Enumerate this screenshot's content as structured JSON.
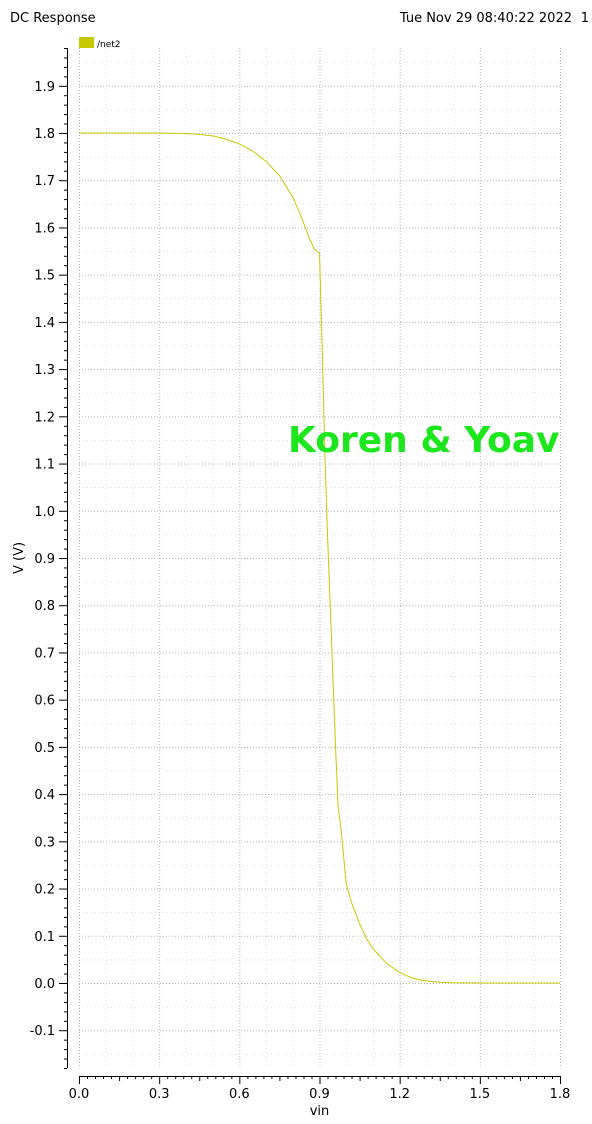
{
  "header": {
    "title": "DC Response",
    "timestamp": "Tue Nov 29 08:40:22 2022",
    "page_number": "1"
  },
  "annotation": {
    "text": "Koren & Yoav",
    "color": "#1ee61e"
  },
  "chart_data": {
    "type": "line",
    "title": "DC Response",
    "xlabel": "vin",
    "ylabel": "V (V)",
    "xlim": [
      0.0,
      1.8
    ],
    "ylim": [
      -0.18,
      1.98
    ],
    "xticks": [
      0.0,
      0.3,
      0.6,
      0.9,
      1.2,
      1.5,
      1.8
    ],
    "xtick_labels": [
      "0.0",
      "0.3",
      "0.6",
      "0.9",
      "1.2",
      "1.5",
      "1.8"
    ],
    "yticks": [
      -0.1,
      0.0,
      0.1,
      0.2,
      0.3,
      0.4,
      0.5,
      0.6,
      0.7,
      0.8,
      0.9,
      1.0,
      1.1,
      1.2,
      1.3,
      1.4,
      1.5,
      1.6,
      1.7,
      1.8,
      1.9
    ],
    "ytick_labels": [
      "-0.1",
      "0.0",
      "0.1",
      "0.2",
      "0.3",
      "0.4",
      "0.5",
      "0.6",
      "0.7",
      "0.8",
      "0.9",
      "1.0",
      "1.1",
      "1.2",
      "1.3",
      "1.4",
      "1.5",
      "1.6",
      "1.7",
      "1.8",
      "1.9"
    ],
    "grid": true,
    "legend": "top-left",
    "series": [
      {
        "name": "/net2",
        "color": "#c8c800",
        "x": [
          0.0,
          0.3,
          0.4,
          0.45,
          0.5,
          0.55,
          0.6,
          0.65,
          0.7,
          0.75,
          0.8,
          0.83,
          0.86,
          0.88,
          0.9,
          0.91,
          0.92,
          0.93,
          0.94,
          0.95,
          0.96,
          0.97,
          0.98,
          1.0,
          1.02,
          1.05,
          1.08,
          1.1,
          1.15,
          1.2,
          1.25,
          1.3,
          1.35,
          1.4,
          1.5,
          1.8
        ],
        "y": [
          1.8,
          1.8,
          1.799,
          1.797,
          1.794,
          1.787,
          1.777,
          1.762,
          1.74,
          1.71,
          1.664,
          1.625,
          1.58,
          1.555,
          1.545,
          1.35,
          1.12,
          0.95,
          0.8,
          0.65,
          0.5,
          0.37,
          0.33,
          0.21,
          0.17,
          0.125,
          0.09,
          0.073,
          0.042,
          0.022,
          0.01,
          0.004,
          0.0015,
          0.0005,
          0.0,
          0.0
        ]
      }
    ]
  }
}
